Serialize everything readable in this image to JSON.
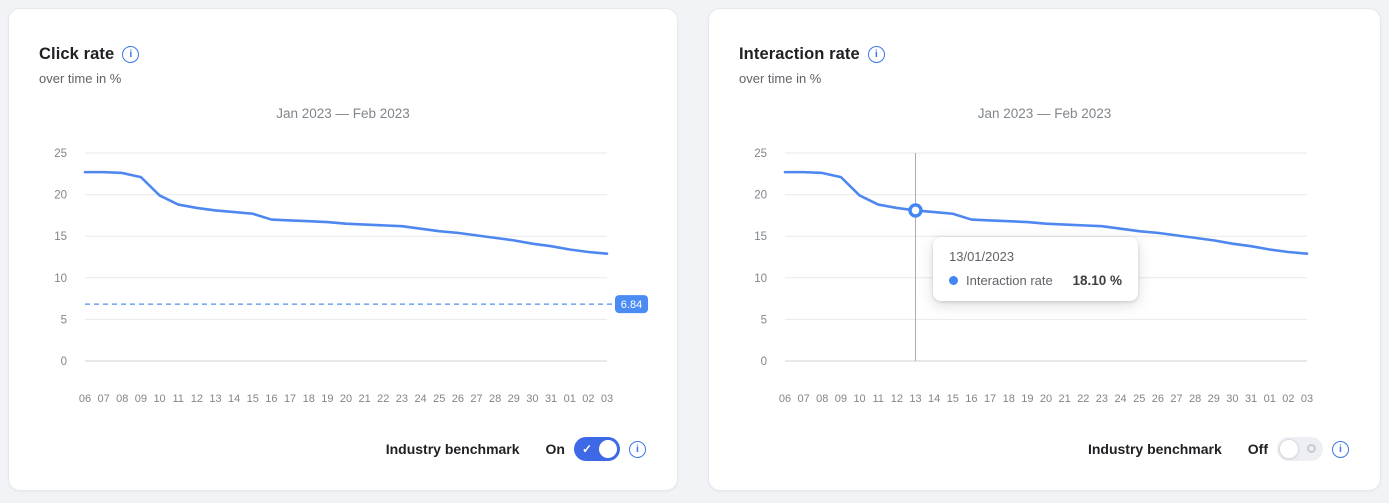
{
  "page": {
    "background": "#f1f3f7"
  },
  "colors": {
    "series_line": "#4e87f0",
    "benchmark_line": "#4d8ff2",
    "benchmark_badge": "#4a8cf4",
    "accent_blue": "#3b78e7",
    "toggle_on": "#3d68e6",
    "grid": "#e7e9ec",
    "axis_zero_line": "#cdd1d7",
    "axis_text": "#80868b",
    "crosshair": "#aaaeb4"
  },
  "cards": [
    {
      "title": "Click rate",
      "subtitle": "over time in %",
      "chart_title": "Jan 2023 — Feb 2023",
      "benchmark_label": "6.84",
      "toggle": {
        "label": "Industry benchmark",
        "state_label": "On",
        "on": true
      }
    },
    {
      "title": "Interaction rate",
      "subtitle": "over time in %",
      "chart_title": "Jan 2023 — Feb 2023",
      "toggle": {
        "label": "Industry benchmark",
        "state_label": "Off",
        "on": false
      },
      "tooltip": {
        "date": "13/01/2023",
        "series_label": "Interaction rate",
        "value": "18.10 %"
      }
    }
  ],
  "chart_data": [
    {
      "type": "line",
      "title": "Jan 2023 — Feb 2023",
      "xlabel": "",
      "ylabel": "%",
      "ylim": [
        0,
        25
      ],
      "yticks": [
        0,
        5,
        10,
        15,
        20,
        25
      ],
      "grid": true,
      "legend": "none",
      "categories": [
        "06",
        "07",
        "08",
        "09",
        "10",
        "11",
        "12",
        "13",
        "14",
        "15",
        "16",
        "17",
        "18",
        "19",
        "20",
        "21",
        "22",
        "23",
        "24",
        "25",
        "26",
        "27",
        "28",
        "29",
        "30",
        "31",
        "01",
        "02",
        "03"
      ],
      "series": [
        {
          "name": "Click rate",
          "color": "#4e87f0",
          "values": [
            22.7,
            22.7,
            22.6,
            22.1,
            19.9,
            18.8,
            18.4,
            18.1,
            17.9,
            17.7,
            17.0,
            16.9,
            16.8,
            16.7,
            16.5,
            16.4,
            16.3,
            16.2,
            15.9,
            15.6,
            15.4,
            15.1,
            14.8,
            14.5,
            14.1,
            13.8,
            13.4,
            13.1,
            12.9
          ]
        }
      ],
      "benchmark": {
        "value": 6.84,
        "label": "6.84",
        "line_style": "dashed",
        "color": "#4a8cf4"
      },
      "highlight": null
    },
    {
      "type": "line",
      "title": "Jan 2023 — Feb 2023",
      "xlabel": "",
      "ylabel": "%",
      "ylim": [
        0,
        25
      ],
      "yticks": [
        0,
        5,
        10,
        15,
        20,
        25
      ],
      "grid": true,
      "legend": "none",
      "categories": [
        "06",
        "07",
        "08",
        "09",
        "10",
        "11",
        "12",
        "13",
        "14",
        "15",
        "16",
        "17",
        "18",
        "19",
        "20",
        "21",
        "22",
        "23",
        "24",
        "25",
        "26",
        "27",
        "28",
        "29",
        "30",
        "31",
        "01",
        "02",
        "03"
      ],
      "series": [
        {
          "name": "Interaction rate",
          "color": "#4e87f0",
          "values": [
            22.7,
            22.7,
            22.6,
            22.1,
            19.9,
            18.8,
            18.4,
            18.1,
            17.9,
            17.7,
            17.0,
            16.9,
            16.8,
            16.7,
            16.5,
            16.4,
            16.3,
            16.2,
            15.9,
            15.6,
            15.4,
            15.1,
            14.8,
            14.5,
            14.1,
            13.8,
            13.4,
            13.1,
            12.9
          ]
        }
      ],
      "benchmark": null,
      "highlight": {
        "category": "13",
        "index": 7,
        "value": 18.1
      }
    }
  ]
}
